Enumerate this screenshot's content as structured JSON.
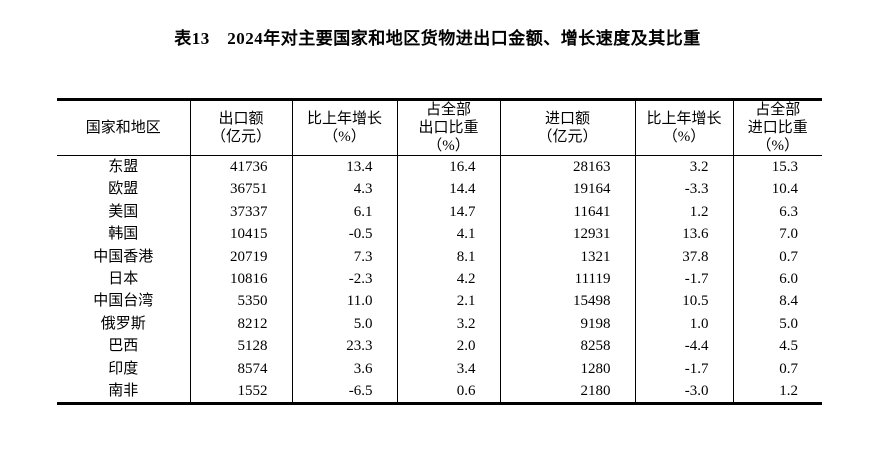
{
  "page": {
    "title": "表13　2024年对主要国家和地区货物进出口金额、增长速度及其比重"
  },
  "table": {
    "columns": [
      {
        "label": "国家和地区"
      },
      {
        "label": "出口额\n（亿元）"
      },
      {
        "label": "比上年增长\n（%）"
      },
      {
        "label": "占全部\n出口比重\n（%）"
      },
      {
        "label": "进口额\n（亿元）"
      },
      {
        "label": "比上年增长\n（%）"
      },
      {
        "label": "占全部\n进口比重\n（%）"
      }
    ],
    "rows": [
      [
        "东盟",
        "41736",
        "13.4",
        "16.4",
        "28163",
        "3.2",
        "15.3"
      ],
      [
        "欧盟",
        "36751",
        "4.3",
        "14.4",
        "19164",
        "-3.3",
        "10.4"
      ],
      [
        "美国",
        "37337",
        "6.1",
        "14.7",
        "11641",
        "1.2",
        "6.3"
      ],
      [
        "韩国",
        "10415",
        "-0.5",
        "4.1",
        "12931",
        "13.6",
        "7.0"
      ],
      [
        "中国香港",
        "20719",
        "7.3",
        "8.1",
        "1321",
        "37.8",
        "0.7"
      ],
      [
        "日本",
        "10816",
        "-2.3",
        "4.2",
        "11119",
        "-1.7",
        "6.0"
      ],
      [
        "中国台湾",
        "5350",
        "11.0",
        "2.1",
        "15498",
        "10.5",
        "8.4"
      ],
      [
        "俄罗斯",
        "8212",
        "5.0",
        "3.2",
        "9198",
        "1.0",
        "5.0"
      ],
      [
        "巴西",
        "5128",
        "23.3",
        "2.0",
        "8258",
        "-4.4",
        "4.5"
      ],
      [
        "印度",
        "8574",
        "3.6",
        "3.4",
        "1280",
        "-1.7",
        "0.7"
      ],
      [
        "南非",
        "1552",
        "-6.5",
        "0.6",
        "2180",
        "-3.0",
        "1.2"
      ]
    ]
  },
  "chart_data": {
    "type": "table",
    "title": "表13　2024年对主要国家和地区货物进出口金额、增长速度及其比重",
    "columns": [
      "国家和地区",
      "出口额（亿元）",
      "比上年增长（%）",
      "占全部出口比重（%）",
      "进口额（亿元）",
      "比上年增长（%）",
      "占全部进口比重（%）"
    ],
    "rows": [
      {
        "region": "东盟",
        "export_value": 41736,
        "export_growth": 13.4,
        "export_share": 16.4,
        "import_value": 28163,
        "import_growth": 3.2,
        "import_share": 15.3
      },
      {
        "region": "欧盟",
        "export_value": 36751,
        "export_growth": 4.3,
        "export_share": 14.4,
        "import_value": 19164,
        "import_growth": -3.3,
        "import_share": 10.4
      },
      {
        "region": "美国",
        "export_value": 37337,
        "export_growth": 6.1,
        "export_share": 14.7,
        "import_value": 11641,
        "import_growth": 1.2,
        "import_share": 6.3
      },
      {
        "region": "韩国",
        "export_value": 10415,
        "export_growth": -0.5,
        "export_share": 4.1,
        "import_value": 12931,
        "import_growth": 13.6,
        "import_share": 7.0
      },
      {
        "region": "中国香港",
        "export_value": 20719,
        "export_growth": 7.3,
        "export_share": 8.1,
        "import_value": 1321,
        "import_growth": 37.8,
        "import_share": 0.7
      },
      {
        "region": "日本",
        "export_value": 10816,
        "export_growth": -2.3,
        "export_share": 4.2,
        "import_value": 11119,
        "import_growth": -1.7,
        "import_share": 6.0
      },
      {
        "region": "中国台湾",
        "export_value": 5350,
        "export_growth": 11.0,
        "export_share": 2.1,
        "import_value": 15498,
        "import_growth": 10.5,
        "import_share": 8.4
      },
      {
        "region": "俄罗斯",
        "export_value": 8212,
        "export_growth": 5.0,
        "export_share": 3.2,
        "import_value": 9198,
        "import_growth": 1.0,
        "import_share": 5.0
      },
      {
        "region": "巴西",
        "export_value": 5128,
        "export_growth": 23.3,
        "export_share": 2.0,
        "import_value": 8258,
        "import_growth": -4.4,
        "import_share": 4.5
      },
      {
        "region": "印度",
        "export_value": 8574,
        "export_growth": 3.6,
        "export_share": 3.4,
        "import_value": 1280,
        "import_growth": -1.7,
        "import_share": 0.7
      },
      {
        "region": "南非",
        "export_value": 1552,
        "export_growth": -6.5,
        "export_share": 0.6,
        "import_value": 2180,
        "import_growth": -3.0,
        "import_share": 1.2
      }
    ]
  }
}
